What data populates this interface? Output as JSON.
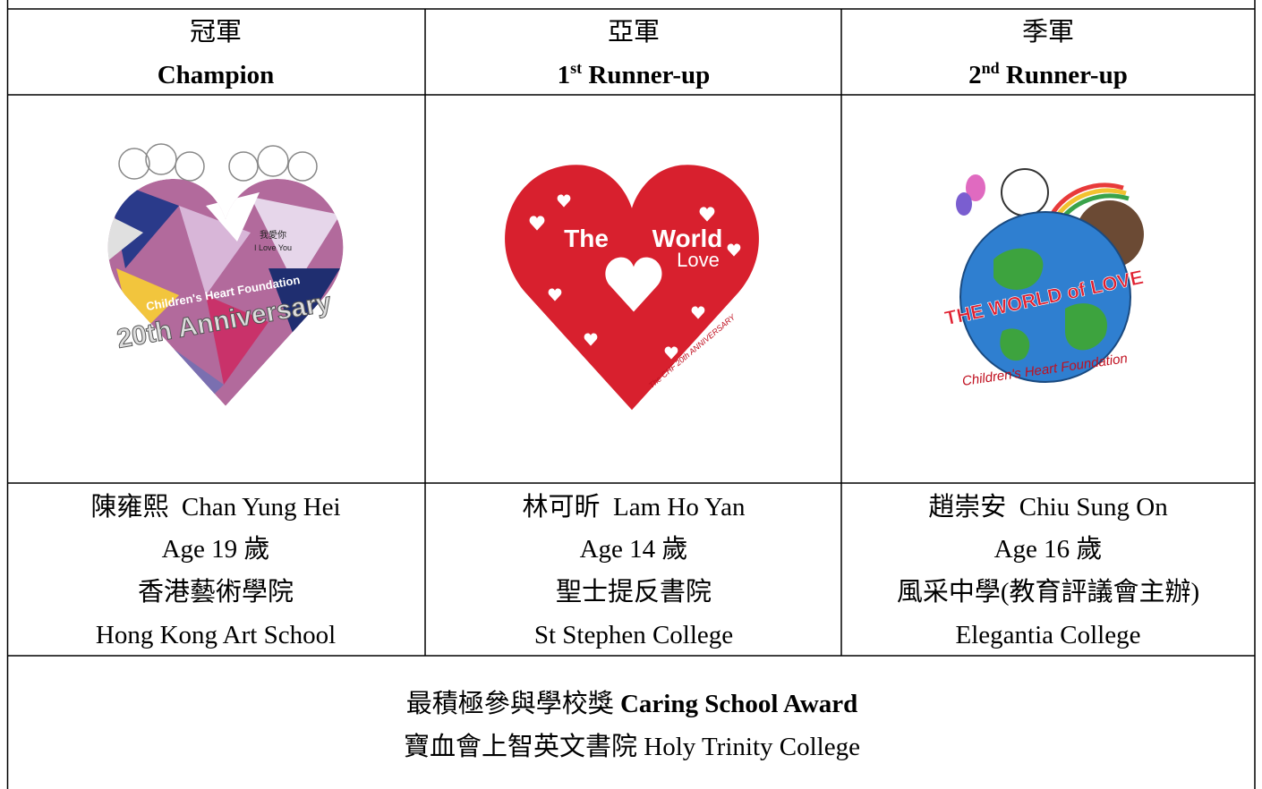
{
  "table": {
    "header": [
      {
        "zh": "冠軍",
        "en": "Champion"
      },
      {
        "zh": "亞軍",
        "en_num": "1",
        "en_sup": "st",
        "en": " Runner-up"
      },
      {
        "zh": "季軍",
        "en_num": "2",
        "en_sup": "nd",
        "en": " Runner-up"
      }
    ],
    "artworks": [
      {
        "texts": [
          "Children's Heart Foundation",
          "20th Anniversary",
          "我愛你",
          "I Love You"
        ]
      },
      {
        "texts": [
          "The",
          "World",
          "Love",
          "The CHF 20th ANNIVERSARY"
        ]
      },
      {
        "texts": [
          "THE WORLD of LOVE",
          "Children's Heart Foundation"
        ]
      }
    ],
    "winners": [
      {
        "name": "陳雍熙  Chan Yung Hei",
        "age": "Age 19 歲",
        "school_zh": "香港藝術學院",
        "school_en": "Hong Kong Art School"
      },
      {
        "name": "林可昕  Lam Ho Yan",
        "age": "Age 14 歲",
        "school_zh": "聖士提反書院",
        "school_en": "St Stephen College"
      },
      {
        "name": "趙崇安  Chiu Sung On",
        "age": "Age 16 歲",
        "school_zh": "風采中學(教育評議會主辦)",
        "school_en": "Elegantia College"
      }
    ],
    "award": {
      "title_zh": "最積極參與學校獎 ",
      "title_en": "Caring School Award",
      "school": "寶血會上智英文書院 Holy Trinity College"
    }
  }
}
